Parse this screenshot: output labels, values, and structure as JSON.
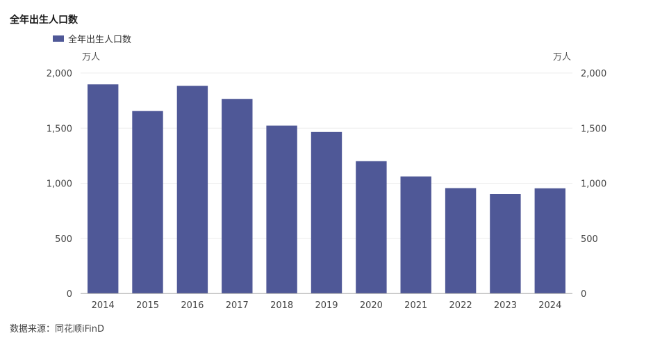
{
  "chart_data": {
    "type": "bar",
    "title": "全年出生人口数",
    "categories": [
      "2014",
      "2015",
      "2016",
      "2017",
      "2018",
      "2019",
      "2020",
      "2021",
      "2022",
      "2023",
      "2024"
    ],
    "series": [
      {
        "name": "全年出生人口数",
        "values": [
          1897,
          1655,
          1883,
          1765,
          1523,
          1465,
          1200,
          1062,
          956,
          902,
          954
        ]
      }
    ],
    "ylabel_left": "万人",
    "ylabel_right": "万人",
    "ylim": [
      0,
      2000
    ],
    "yticks": [
      0,
      500,
      1000,
      1500,
      2000
    ],
    "ytick_labels": [
      "0",
      "500",
      "1,000",
      "1,500",
      "2,000"
    ],
    "legend": "top-left",
    "grid": true,
    "bar_color": "#4F5897"
  },
  "source": "数据来源：同花顺iFinD"
}
